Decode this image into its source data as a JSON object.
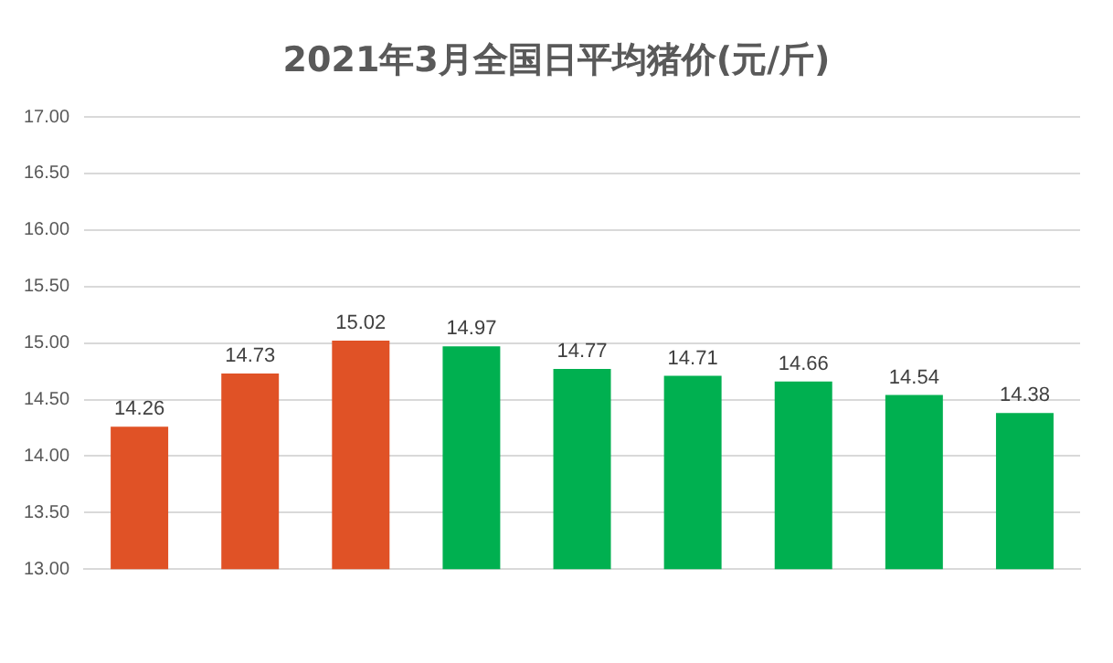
{
  "chart_data": {
    "type": "bar",
    "title": "2021年3月全国日平均猪价(元/斤)",
    "categories": [
      null,
      null,
      null,
      null,
      null,
      null,
      null,
      null,
      null
    ],
    "values": [
      14.26,
      14.73,
      15.02,
      14.97,
      14.77,
      14.71,
      14.66,
      14.54,
      14.38
    ],
    "colors": [
      "#e05226",
      "#e05226",
      "#e05226",
      "#00b050",
      "#00b050",
      "#00b050",
      "#00b050",
      "#00b050",
      "#00b050"
    ],
    "ylim": [
      13,
      17
    ],
    "yticks": [
      {
        "value": 13,
        "label": "13.00"
      },
      {
        "value": 13.5,
        "label": "13.50"
      },
      {
        "value": 14,
        "label": "14.00"
      },
      {
        "value": 14.5,
        "label": "14.50"
      },
      {
        "value": 15,
        "label": "15.00"
      },
      {
        "value": 15.5,
        "label": "15.50"
      },
      {
        "value": 16,
        "label": "16.00"
      },
      {
        "value": 16.5,
        "label": "16.50"
      },
      {
        "value": 17,
        "label": "17.00"
      }
    ],
    "grid": "y",
    "data_labels": true
  }
}
